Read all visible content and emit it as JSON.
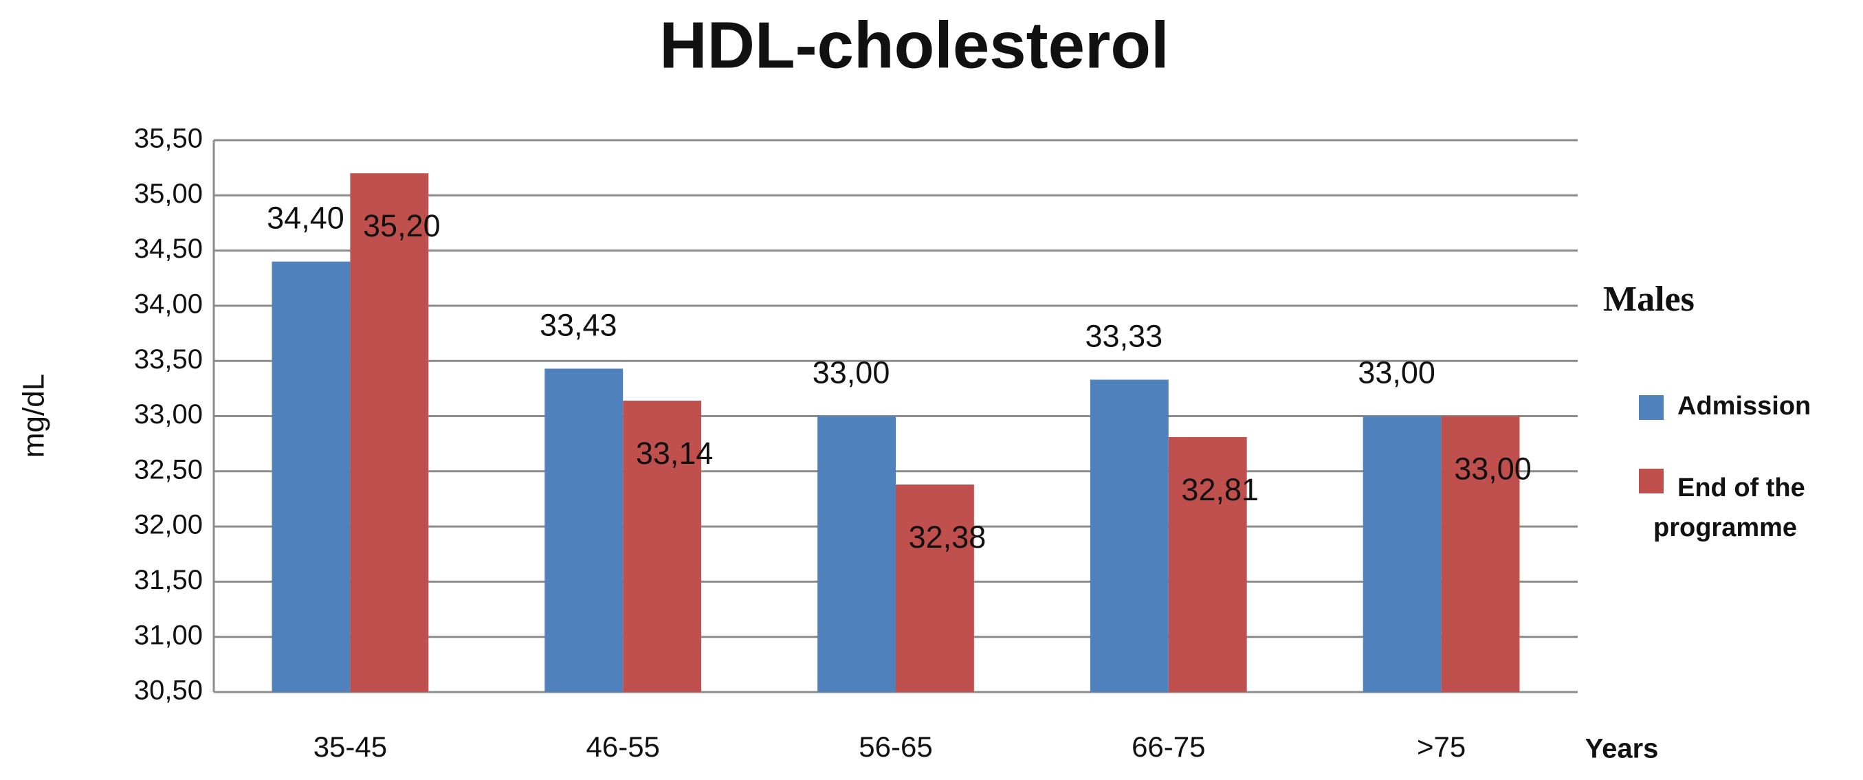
{
  "chart_data": {
    "type": "bar",
    "title": "HDL-cholesterol",
    "subtitle": "Males",
    "x_label": "Years",
    "y_label": "mg/dL",
    "categories": [
      "35-45",
      "46-55",
      "56-65",
      "66-75",
      ">75"
    ],
    "series": [
      {
        "name": "Admission",
        "color": "#4f81bd",
        "values": [
          34.4,
          33.43,
          33.0,
          33.33,
          33.0
        ],
        "value_labels": [
          "34,40",
          "33,43",
          "33,00",
          "33,33",
          "33,00"
        ]
      },
      {
        "name": "End of the programme",
        "color": "#c0504d",
        "values": [
          35.2,
          33.14,
          32.38,
          32.81,
          33.0
        ],
        "value_labels": [
          "35,20",
          "33,14",
          "32,38",
          "32,81",
          "33,00"
        ]
      }
    ],
    "ylim": [
      30.5,
      35.5
    ],
    "yticks": [
      {
        "value": 30.5,
        "label": "30,50"
      },
      {
        "value": 31,
        "label": "31,00"
      },
      {
        "value": 31.5,
        "label": "31,50"
      },
      {
        "value": 32,
        "label": "32,00"
      },
      {
        "value": 32.5,
        "label": "32,50"
      },
      {
        "value": 33,
        "label": "33,00"
      },
      {
        "value": 33.5,
        "label": "33,50"
      },
      {
        "value": 34,
        "label": "34,00"
      },
      {
        "value": 34.5,
        "label": "34,50"
      },
      {
        "value": 35,
        "label": "35,00"
      },
      {
        "value": 35.5,
        "label": "35,50"
      }
    ],
    "grid": true
  }
}
